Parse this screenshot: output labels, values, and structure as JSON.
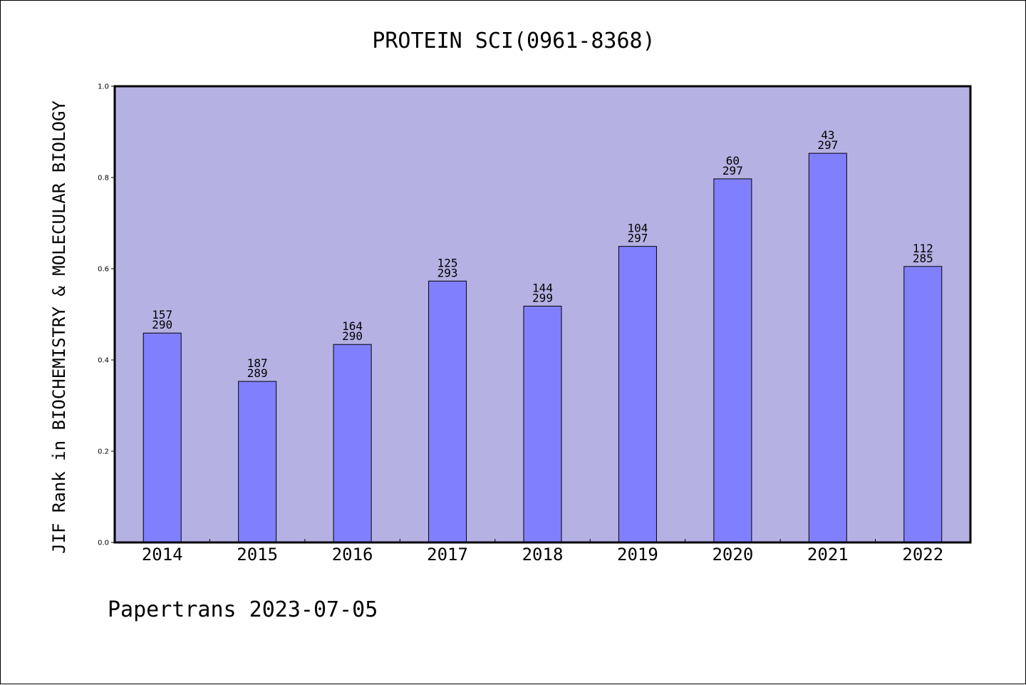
{
  "footer": {
    "text": "Papertrans 2023-07-05"
  },
  "chart_data": {
    "type": "bar",
    "title": "PROTEIN SCI(0961-8368)",
    "xlabel": "",
    "ylabel": "JIF Rank in BIOCHEMISTRY & MOLECULAR BIOLOGY",
    "ylim": [
      0.0,
      1.0
    ],
    "yticks": [
      "0.0",
      "0.2",
      "0.4",
      "0.6",
      "0.8",
      "1.0"
    ],
    "categories": [
      "2014",
      "2015",
      "2016",
      "2017",
      "2018",
      "2019",
      "2020",
      "2021",
      "2022"
    ],
    "values": [
      0.459,
      0.353,
      0.434,
      0.573,
      0.518,
      0.649,
      0.797,
      0.853,
      0.605
    ],
    "rank": [
      "157",
      "187",
      "164",
      "125",
      "144",
      "104",
      "60",
      "43",
      "112"
    ],
    "total": [
      "290",
      "289",
      "290",
      "293",
      "299",
      "297",
      "297",
      "297",
      "285"
    ],
    "grid": false,
    "plot_background": "#b6b1e3",
    "bar_color": "#8080ff"
  }
}
